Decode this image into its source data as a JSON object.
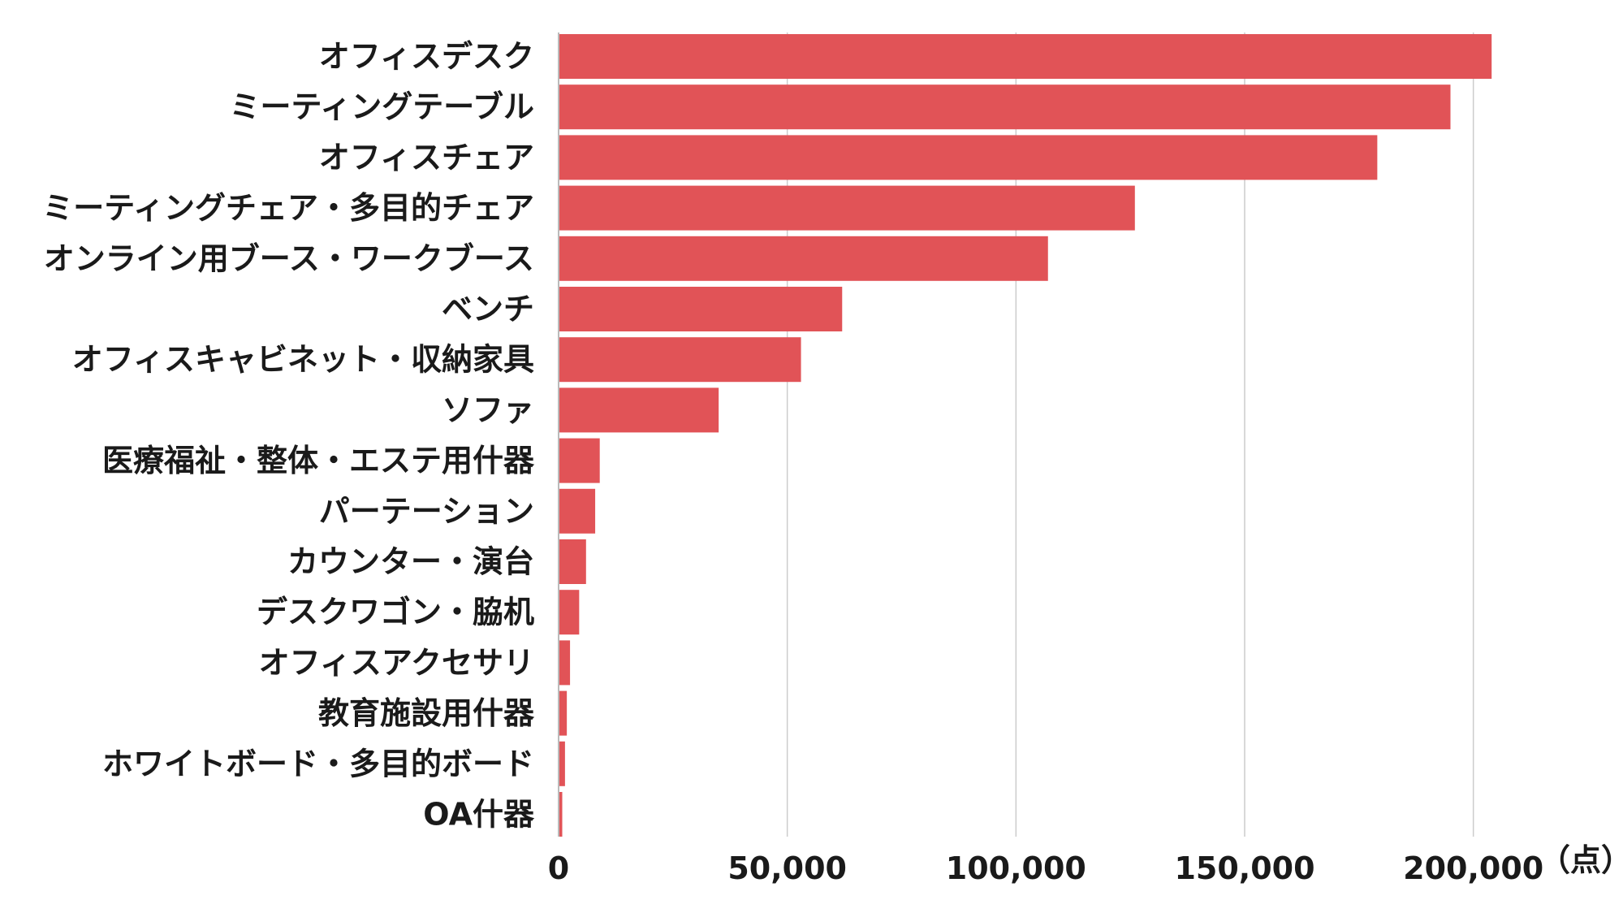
{
  "chart_data": {
    "type": "bar",
    "orientation": "horizontal",
    "title": "",
    "xlabel": "",
    "ylabel": "",
    "unit": "（点）",
    "categories": [
      "オフィスデスク",
      "ミーティングテーブル",
      "オフィスチェア",
      "ミーティングチェア・多目的チェア",
      "オンライン用ブース・ワークブース",
      "ベンチ",
      "オフィスキャビネット・収納家具",
      "ソファ",
      "医療福祉・整体・エステ用什器",
      "パーテーション",
      "カウンター・演台",
      "デスクワゴン・脇机",
      "オフィスアクセサリ",
      "教育施設用什器",
      "ホワイトボード・多目的ボード",
      "OA什器"
    ],
    "values": [
      204000,
      195000,
      179000,
      126000,
      107000,
      62000,
      53000,
      35000,
      9000,
      8000,
      6000,
      4500,
      2500,
      1800,
      1400,
      800
    ],
    "xlim": [
      0,
      210000
    ],
    "xticks": [
      0,
      50000,
      100000,
      150000,
      200000
    ],
    "xtick_labels": [
      "0",
      "50,000",
      "100,000",
      "150,000",
      "200,000"
    ],
    "grid": true,
    "legend": "none",
    "colors": {
      "bar": "#e15357",
      "grid": "#cccccc",
      "axis": "#bbbbbb",
      "text": "#1a1a1a"
    }
  }
}
